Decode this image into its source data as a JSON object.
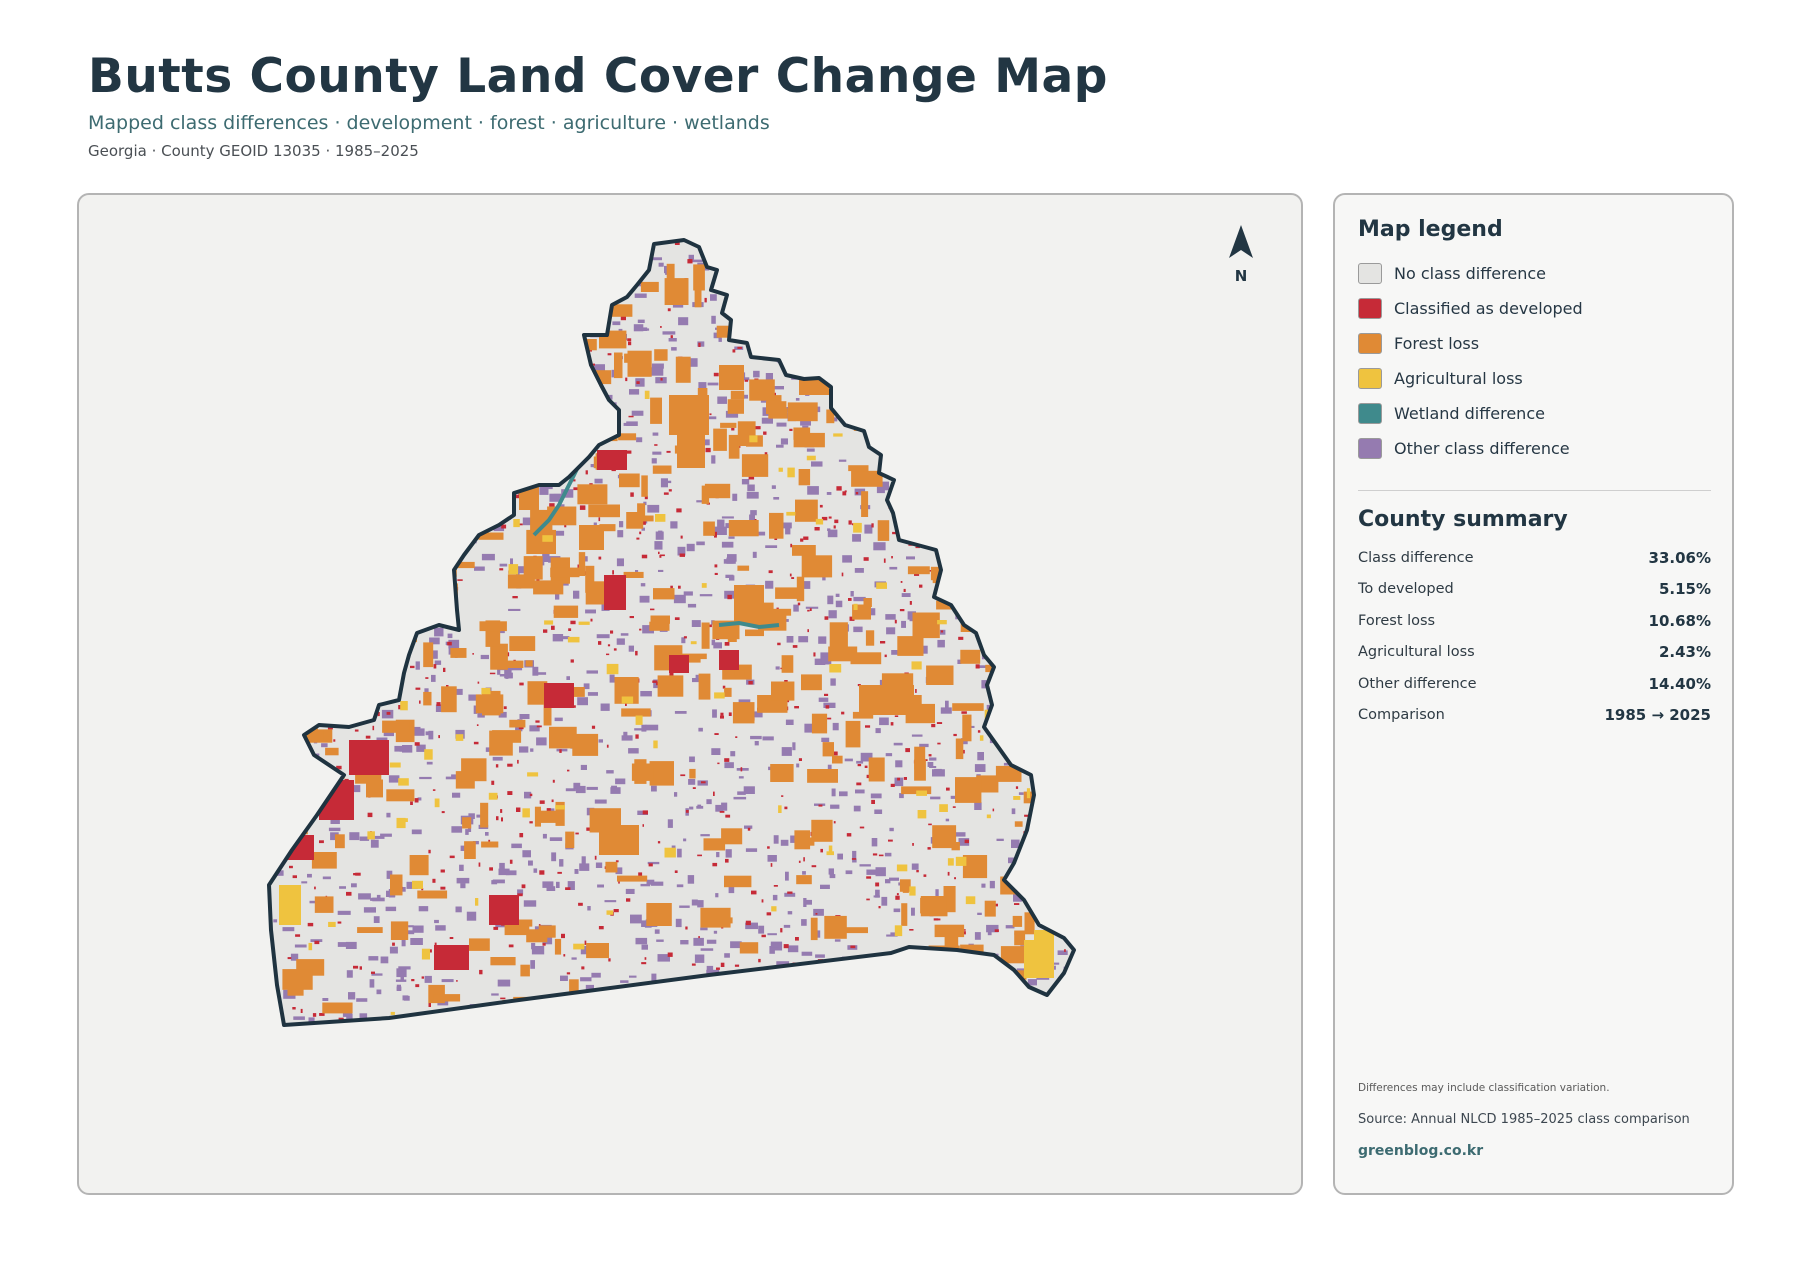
{
  "header": {
    "title": "Butts County Land Cover Change Map",
    "subtitle": "Mapped class differences · development · forest · agriculture · wetlands",
    "meta": "Georgia · County GEOID 13035 · 1985–2025"
  },
  "map": {
    "north_label": "N",
    "colors": {
      "no_change": "#e4e4e2",
      "developed": "#c62a37",
      "forest_loss": "#e08a35",
      "agricultural_loss": "#efc33f",
      "wetland": "#3f8a8c",
      "other": "#957bb0",
      "outline": "#1f3340",
      "background": "#f2f2f0"
    }
  },
  "legend": {
    "title": "Map legend",
    "items": [
      {
        "label": "No class difference",
        "color": "#e4e4e2"
      },
      {
        "label": "Classified as developed",
        "color": "#c62a37"
      },
      {
        "label": "Forest loss",
        "color": "#e08a35"
      },
      {
        "label": "Agricultural loss",
        "color": "#efc33f"
      },
      {
        "label": "Wetland difference",
        "color": "#3f8a8c"
      },
      {
        "label": "Other class difference",
        "color": "#957bb0"
      }
    ]
  },
  "summary": {
    "title": "County summary",
    "rows": [
      {
        "key": "Class difference",
        "value": "33.06%"
      },
      {
        "key": "To developed",
        "value": "5.15%"
      },
      {
        "key": "Forest loss",
        "value": "10.68%"
      },
      {
        "key": "Agricultural loss",
        "value": "2.43%"
      },
      {
        "key": "Other difference",
        "value": "14.40%"
      },
      {
        "key": "Comparison",
        "value": "1985 → 2025"
      }
    ]
  },
  "footer": {
    "footnote": "Differences may include classification variation.",
    "source": "Source: Annual NLCD 1985–2025 class comparison",
    "brand": "greenblog.co.kr"
  }
}
